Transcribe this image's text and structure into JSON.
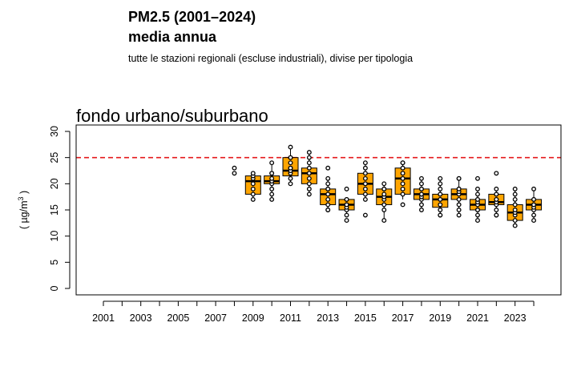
{
  "header": {
    "title_line1": "PM2.5 (2001–2024)",
    "title_line2": "media annua",
    "subtitle": "tutte le stazioni regionali (escluse industriali), divise per tipologia"
  },
  "chart_data": {
    "type": "box",
    "panel_title": "fondo urbano/suburbano",
    "ylabel_base": "( µg/m",
    "ylabel_exp": "3",
    "ylabel_close": " )",
    "ylim": [
      -1,
      30.5
    ],
    "yticks": [
      0,
      5,
      10,
      15,
      20,
      25,
      30
    ],
    "xtick_labels": [
      "2001",
      "2003",
      "2005",
      "2007",
      "2009",
      "2011",
      "2013",
      "2015",
      "2017",
      "2019",
      "2021",
      "2023"
    ],
    "years": [
      2001,
      2002,
      2003,
      2004,
      2005,
      2006,
      2007,
      2008,
      2009,
      2010,
      2011,
      2012,
      2013,
      2014,
      2015,
      2016,
      2017,
      2018,
      2019,
      2020,
      2021,
      2022,
      2023,
      2024
    ],
    "limit_value": 25,
    "limit_color": "#e41a1c",
    "box_color": "#ffa500",
    "boxes": [
      {
        "year": 2008,
        "points": [
          22,
          23
        ]
      },
      {
        "year": 2009,
        "q1": 18,
        "median": 20.5,
        "q3": 21.5,
        "whisker_low": 17,
        "whisker_high": 22,
        "points": [
          17,
          18,
          19,
          20,
          21,
          21.5,
          22
        ]
      },
      {
        "year": 2010,
        "q1": 20,
        "median": 20.5,
        "q3": 21.5,
        "whisker_low": 17,
        "whisker_high": 24,
        "points": [
          17,
          18,
          19,
          20,
          20.5,
          21,
          22,
          22,
          24
        ]
      },
      {
        "year": 2011,
        "q1": 21.5,
        "median": 22.5,
        "q3": 25,
        "whisker_low": 20,
        "whisker_high": 27,
        "points": [
          20,
          21,
          22,
          22.5,
          23,
          23,
          24,
          25,
          25,
          27
        ]
      },
      {
        "year": 2012,
        "q1": 20,
        "median": 22,
        "q3": 23,
        "whisker_low": 18,
        "whisker_high": 26,
        "points": [
          18,
          19,
          20,
          21,
          22,
          22,
          23,
          24,
          25,
          26
        ]
      },
      {
        "year": 2013,
        "q1": 16,
        "median": 18,
        "q3": 19,
        "whisker_low": 15,
        "whisker_high": 21,
        "points": [
          15,
          15,
          16,
          17,
          18,
          18,
          19,
          19,
          20,
          21,
          23
        ]
      },
      {
        "year": 2014,
        "q1": 15,
        "median": 16,
        "q3": 17,
        "whisker_low": 14,
        "whisker_high": 17,
        "points": [
          13,
          14,
          15,
          15.5,
          16,
          16,
          17,
          17,
          19
        ]
      },
      {
        "year": 2015,
        "q1": 18,
        "median": 20,
        "q3": 22,
        "whisker_low": 17,
        "whisker_high": 24,
        "points": [
          14,
          17,
          18,
          19,
          20,
          20,
          21,
          22,
          23,
          24
        ]
      },
      {
        "year": 2016,
        "q1": 16,
        "median": 17.5,
        "q3": 19,
        "whisker_low": 13,
        "whisker_high": 20,
        "points": [
          13,
          15,
          16,
          17,
          17.5,
          18,
          19,
          19,
          20
        ]
      },
      {
        "year": 2017,
        "q1": 18,
        "median": 21,
        "q3": 23,
        "whisker_low": 17,
        "whisker_high": 24,
        "points": [
          16,
          18,
          19,
          20,
          21,
          21,
          22,
          23,
          24,
          24
        ]
      },
      {
        "year": 2018,
        "q1": 17,
        "median": 18,
        "q3": 19,
        "whisker_low": 15,
        "whisker_high": 21,
        "points": [
          15,
          16,
          17,
          17.5,
          18,
          18,
          19,
          19,
          20,
          21
        ]
      },
      {
        "year": 2019,
        "q1": 15.5,
        "median": 17,
        "q3": 18,
        "whisker_low": 14,
        "whisker_high": 21,
        "points": [
          14,
          14,
          15,
          16,
          17,
          17,
          18,
          18,
          19,
          20,
          21
        ]
      },
      {
        "year": 2020,
        "q1": 17,
        "median": 18,
        "q3": 19,
        "whisker_low": 14,
        "whisker_high": 21,
        "points": [
          14,
          15,
          16,
          17,
          18,
          18,
          18.5,
          19,
          19,
          21,
          21
        ]
      },
      {
        "year": 2021,
        "q1": 15,
        "median": 16,
        "q3": 17,
        "whisker_low": 13,
        "whisker_high": 19,
        "points": [
          13,
          14,
          15,
          15,
          16,
          16,
          16.5,
          17,
          17,
          18,
          19,
          21
        ]
      },
      {
        "year": 2022,
        "q1": 16,
        "median": 16.5,
        "q3": 18,
        "whisker_low": 14,
        "whisker_high": 19,
        "points": [
          14,
          14,
          15,
          16,
          16.5,
          17,
          17,
          18,
          18,
          19,
          22
        ]
      },
      {
        "year": 2023,
        "q1": 13,
        "median": 14.5,
        "q3": 16,
        "whisker_low": 12,
        "whisker_high": 19,
        "points": [
          12,
          13,
          14,
          14.5,
          15,
          16,
          17,
          18,
          19
        ]
      },
      {
        "year": 2024,
        "q1": 15,
        "median": 16,
        "q3": 17,
        "whisker_low": 13,
        "whisker_high": 19,
        "points": [
          13,
          14,
          15,
          15.5,
          16,
          16,
          17,
          17,
          19
        ]
      }
    ]
  }
}
